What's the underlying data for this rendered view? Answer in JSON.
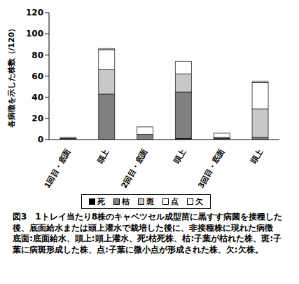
{
  "chart_data": {
    "type": "bar",
    "title": "図3　1トレイ当たり8株のキャベツセル成型苗に黒すす病菌を接種した後、底面給水または頭上灌水で栽培した後に、非接種株に現れた病徴",
    "caption": "底面:底面給水、頭上:頭上灌水、死:枯死株、枯:子葉が枯れた株、斑:子葉に病斑形成した株、点:子葉に微小点が形成された株、欠:欠株。",
    "y_label": "各病徴を示した株数（/120）",
    "categories": [
      "1回目・底面",
      "頭上",
      "2回目・底面",
      "頭上",
      "3回目・底面",
      "頭上"
    ],
    "series": [
      {
        "name": "死",
        "color": "#000000",
        "values": [
          0,
          0,
          0,
          1,
          0,
          0
        ]
      },
      {
        "name": "枯",
        "color": "#808080",
        "values": [
          1,
          43,
          5,
          44,
          1,
          2
        ]
      },
      {
        "name": "斑",
        "color": "#c8c8c8",
        "values": [
          1,
          23,
          0,
          17,
          1,
          27
        ]
      },
      {
        "name": "点",
        "color": "#ffffff",
        "values": [
          0,
          19,
          7,
          12,
          4,
          25
        ]
      },
      {
        "name": "欠",
        "color": "#ffffff",
        "values": [
          0,
          1,
          0,
          0,
          0,
          1
        ]
      }
    ],
    "stacked": true,
    "ylim": [
      0,
      120
    ],
    "yticks": [
      0,
      20,
      40,
      60,
      80,
      100,
      120
    ],
    "grid": false,
    "legend": "bottom"
  }
}
